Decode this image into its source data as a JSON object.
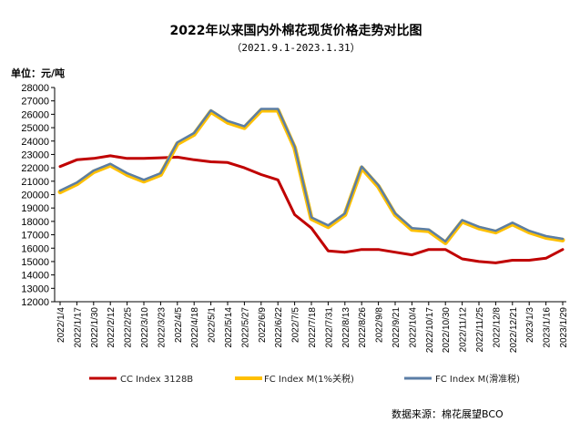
{
  "chart_data": {
    "type": "line",
    "title": "2022年以来国内外棉花现货价格走势对比图",
    "subtitle": "（2021.9.1-2023.1.31）",
    "ylabel": "单位：元/吨",
    "ylim": [
      12000,
      28000
    ],
    "ytick_step": 1000,
    "yticks": [
      "12000",
      "13000",
      "14000",
      "15000",
      "16000",
      "17000",
      "18000",
      "19000",
      "20000",
      "21000",
      "22000",
      "23000",
      "24000",
      "25000",
      "26000",
      "27000",
      "28000"
    ],
    "categories": [
      "2022/1/4",
      "2022/1/17",
      "2022/1/30",
      "2022/2/12",
      "2022/2/25",
      "2022/3/10",
      "2022/3/23",
      "2022/4/5",
      "2022/4/18",
      "2022/5/1",
      "2022/5/14",
      "2022/5/27",
      "2022/6/9",
      "2022/6/22",
      "2022/7/5",
      "2022/7/18",
      "2022/7/31",
      "2022/8/13",
      "2022/8/26",
      "2022/9/8",
      "2022/9/21",
      "2022/10/4",
      "2022/10/17",
      "2022/10/30",
      "2022/11/12",
      "2022/11/25",
      "2022/12/8",
      "2022/12/21",
      "2023/1/3",
      "2023/1/16",
      "2023/1/29"
    ],
    "series": [
      {
        "name": "CC Index 3128B",
        "color": "#c00000",
        "values": [
          22100,
          22600,
          22700,
          22900,
          22700,
          22700,
          22750,
          22800,
          22600,
          22450,
          22400,
          22000,
          21500,
          21100,
          18500,
          17500,
          15800,
          15700,
          15900,
          15900,
          15700,
          15500,
          15900,
          15900,
          15200,
          15000,
          14900,
          15100,
          15100,
          15250,
          15900
        ]
      },
      {
        "name": "FC Index M(1%关税)",
        "color": "#ffc000",
        "values": [
          20200,
          20800,
          21700,
          22200,
          21500,
          21000,
          21500,
          23800,
          24500,
          26200,
          25400,
          25000,
          26300,
          26300,
          23500,
          18200,
          17600,
          18500,
          22000,
          20600,
          18500,
          17400,
          17300,
          16400,
          18000,
          17500,
          17200,
          17800,
          17200,
          16800,
          16600
        ]
      },
      {
        "name": "FC Index M(滑准税)",
        "color": "#5b7ea6",
        "values": [
          20300,
          20900,
          21800,
          22300,
          21600,
          21100,
          21600,
          23900,
          24600,
          26300,
          25500,
          25100,
          26400,
          26400,
          23600,
          18300,
          17700,
          18600,
          22100,
          20700,
          18600,
          17500,
          17400,
          16500,
          18100,
          17600,
          17300,
          17900,
          17300,
          16900,
          16700
        ]
      }
    ],
    "grid": false,
    "legend": "bottom"
  },
  "source": "数据来源：棉花展望BCO"
}
